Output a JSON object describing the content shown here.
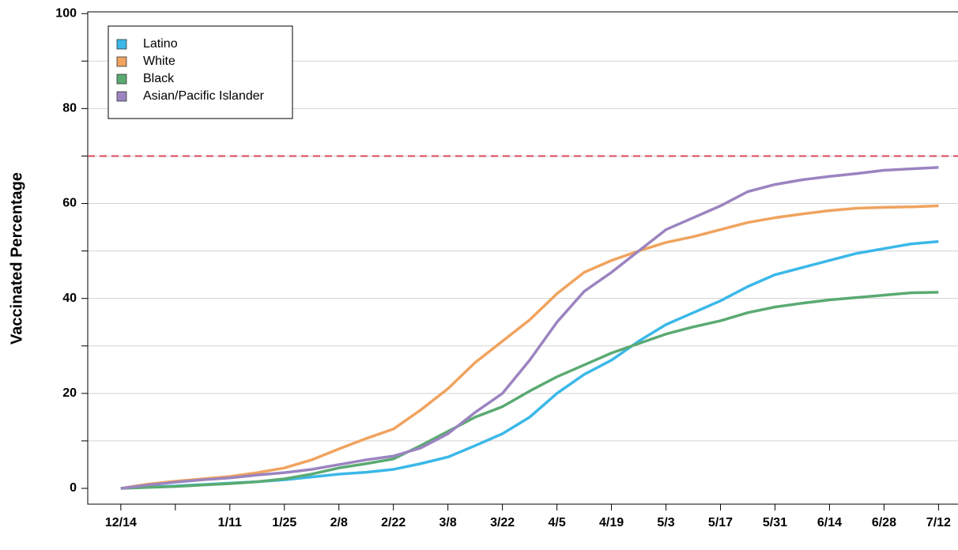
{
  "chart_data": {
    "type": "line",
    "y_label": "Vaccinated Percentage",
    "x": [
      0,
      7,
      14,
      21,
      28,
      35,
      42,
      49,
      56,
      63,
      70,
      77,
      84,
      91,
      98,
      105,
      112,
      119,
      126,
      133,
      140,
      147,
      154,
      161,
      168,
      175,
      182,
      189,
      196,
      203,
      210
    ],
    "series": [
      {
        "name": "Latino",
        "color": "#3bb8e8",
        "values": [
          0,
          0.3,
          0.5,
          0.8,
          1.1,
          1.4,
          1.8,
          2.4,
          3,
          3.4,
          4,
          5.2,
          6.6,
          9,
          11.5,
          15,
          20,
          24,
          27,
          31,
          34.5,
          37,
          39.5,
          42.5,
          45,
          46.5,
          48,
          49.5,
          50.5,
          51.5,
          52
        ]
      },
      {
        "name": "White",
        "color": "#f0a35e",
        "values": [
          0,
          0.9,
          1.5,
          2,
          2.5,
          3.3,
          4.3,
          6,
          8.3,
          10.5,
          12.5,
          16.5,
          21,
          26.5,
          31,
          35.5,
          41,
          45.5,
          48,
          50,
          51.8,
          53,
          54.5,
          56,
          57,
          57.8,
          58.5,
          59,
          59.2,
          59.3,
          59.5
        ]
      },
      {
        "name": "Black",
        "color": "#5aaa72",
        "values": [
          0,
          0.2,
          0.4,
          0.7,
          1,
          1.4,
          2,
          3,
          4.3,
          5.2,
          6.2,
          9,
          12,
          15,
          17.2,
          20.5,
          23.5,
          26,
          28.5,
          30.5,
          32.5,
          34,
          35.3,
          37,
          38.2,
          39,
          39.7,
          40.2,
          40.7,
          41.2,
          41.3
        ]
      },
      {
        "name": "Asian/Pacific Islander",
        "color": "#9b84c0",
        "values": [
          0,
          0.7,
          1.3,
          1.8,
          2.2,
          2.8,
          3.3,
          4,
          5,
          6,
          6.8,
          8.5,
          11.5,
          16,
          20,
          27,
          35,
          41.5,
          45.5,
          50,
          54.5,
          57,
          59.5,
          62.5,
          64,
          65,
          65.7,
          66.3,
          67,
          67.3,
          67.6
        ]
      }
    ],
    "xlim": [
      -8.5,
      215
    ],
    "xticks": [
      {
        "value": 0,
        "label": "12/14"
      },
      {
        "value": 28,
        "label": "1/11"
      },
      {
        "value": 42,
        "label": "1/25"
      },
      {
        "value": 56,
        "label": "2/8"
      },
      {
        "value": 70,
        "label": "2/22"
      },
      {
        "value": 84,
        "label": "3/8"
      },
      {
        "value": 98,
        "label": "3/22"
      },
      {
        "value": 112,
        "label": "4/5"
      },
      {
        "value": 126,
        "label": "4/19"
      },
      {
        "value": 140,
        "label": "5/3"
      },
      {
        "value": 154,
        "label": "5/17"
      },
      {
        "value": 168,
        "label": "5/31"
      },
      {
        "value": 182,
        "label": "6/14"
      },
      {
        "value": 196,
        "label": "6/28"
      },
      {
        "value": 210,
        "label": "7/12"
      }
    ],
    "xminor": [
      14
    ],
    "ylim": [
      0,
      100.2
    ],
    "yticks": [
      0,
      20,
      40,
      60,
      80,
      100
    ],
    "yminor": [
      10,
      30,
      50,
      70,
      90
    ],
    "grid": true,
    "reference_line": {
      "value": 70,
      "color": "#d9475e"
    },
    "legend": "top-left"
  }
}
